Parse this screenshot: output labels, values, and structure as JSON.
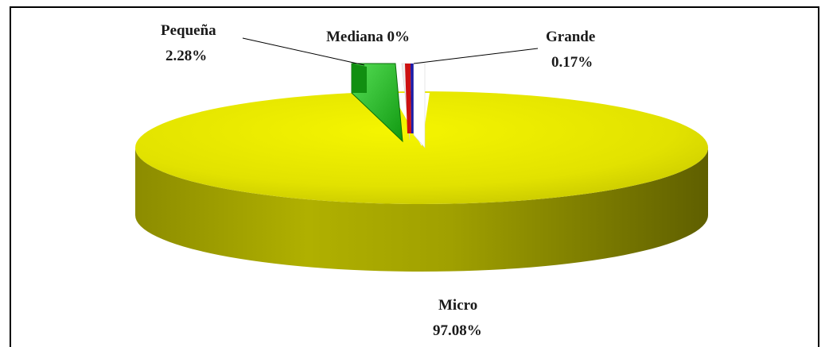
{
  "chart_data": {
    "type": "pie",
    "style": "3d-exploded",
    "title": "",
    "slices": [
      {
        "label": "Micro",
        "value": 97.08,
        "value_label": "97.08%",
        "color": "#e6e600"
      },
      {
        "label": "Pequeña",
        "value": 2.28,
        "value_label": "2.28%",
        "color": "#22bb22"
      },
      {
        "label": "Mediana",
        "value": 0,
        "value_label": "0%",
        "color": "#e8e8e8"
      },
      {
        "label": "Grande",
        "value": 0.17,
        "value_label": "0.17%",
        "color": "#cc1111"
      }
    ],
    "labels": {
      "pequena_name": "Pequeña",
      "pequena_value": "2.28%",
      "mediana_full": "Mediana 0%",
      "grande_name": "Grande",
      "grande_value": "0.17%",
      "micro_name": "Micro",
      "micro_value": "97.08%"
    },
    "legend": "none"
  }
}
